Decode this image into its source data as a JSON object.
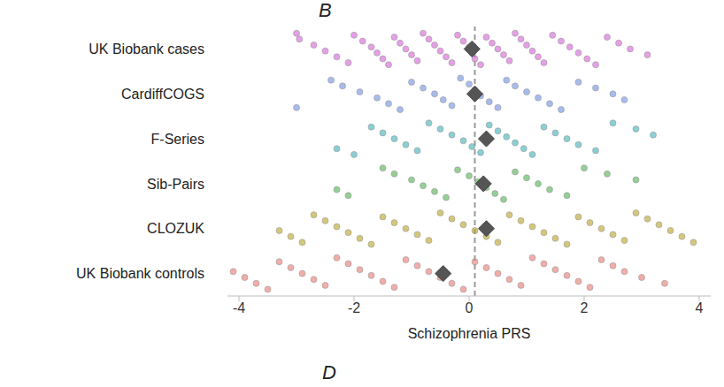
{
  "chart_data": {
    "type": "strip",
    "x_label": "Schizophrenia PRS",
    "annotations": [
      "B",
      "D"
    ],
    "xlim": [
      -4.2,
      4.2
    ],
    "xticks": [
      -4,
      -2,
      0,
      2,
      4
    ],
    "reference_line": 0.1,
    "marker": "circle",
    "grid": false,
    "series": [
      {
        "name": "UK Biobank cases",
        "color": "#d65fd6",
        "mean": 0.05,
        "values": [
          -3.0,
          -2.95,
          -2.7,
          -2.5,
          -2.3,
          -2.1,
          -2.0,
          -1.85,
          -1.7,
          -1.6,
          -1.5,
          -1.4,
          -1.3,
          -1.2,
          -1.1,
          -1.0,
          -0.9,
          -0.8,
          -0.7,
          -0.6,
          -0.5,
          -0.4,
          -0.3,
          -0.2,
          -0.1,
          0.0,
          0.05,
          0.1,
          0.2,
          0.3,
          0.4,
          0.5,
          0.6,
          0.7,
          0.8,
          0.9,
          1.0,
          1.1,
          1.2,
          1.3,
          1.45,
          1.6,
          1.75,
          1.9,
          2.05,
          2.2,
          2.4,
          2.6,
          2.8,
          3.1
        ]
      },
      {
        "name": "CardiffCOGS",
        "color": "#6c8de0",
        "mean": 0.1,
        "values": [
          -3.0,
          -2.4,
          -2.2,
          -1.9,
          -1.6,
          -1.4,
          -1.2,
          -1.0,
          -0.8,
          -0.6,
          -0.45,
          -0.3,
          -0.15,
          0.0,
          0.1,
          0.2,
          0.35,
          0.5,
          0.65,
          0.8,
          1.0,
          1.2,
          1.4,
          1.6,
          1.9,
          2.2,
          2.5,
          2.7
        ]
      },
      {
        "name": "F-Series",
        "color": "#3aafb5",
        "mean": 0.3,
        "values": [
          -2.3,
          -2.0,
          -1.7,
          -1.5,
          -1.3,
          -1.1,
          -0.9,
          -0.7,
          -0.5,
          -0.3,
          -0.1,
          0.05,
          0.2,
          0.35,
          0.5,
          0.65,
          0.8,
          0.95,
          1.1,
          1.3,
          1.5,
          1.7,
          1.9,
          2.2,
          2.5,
          2.9,
          3.2
        ]
      },
      {
        "name": "Sib-Pairs",
        "color": "#4caf50",
        "mean": 0.25,
        "values": [
          -2.3,
          -2.1,
          -1.5,
          -1.3,
          -1.0,
          -0.8,
          -0.6,
          -0.4,
          -0.2,
          0.0,
          0.15,
          0.3,
          0.45,
          0.6,
          0.8,
          1.0,
          1.2,
          1.4,
          1.7,
          2.0,
          2.4,
          2.9
        ]
      },
      {
        "name": "CLOZUK",
        "color": "#b8a21f",
        "mean": 0.3,
        "values": [
          -3.3,
          -3.1,
          -2.9,
          -2.7,
          -2.5,
          -2.3,
          -2.1,
          -1.9,
          -1.7,
          -1.5,
          -1.3,
          -1.1,
          -0.9,
          -0.7,
          -0.5,
          -0.3,
          -0.1,
          0.1,
          0.3,
          0.5,
          0.7,
          0.9,
          1.1,
          1.3,
          1.5,
          1.7,
          1.9,
          2.1,
          2.3,
          2.5,
          2.7,
          2.9,
          3.1,
          3.3,
          3.5,
          3.7,
          3.9
        ]
      },
      {
        "name": "UK Biobank controls",
        "color": "#e8776f",
        "mean": -0.45,
        "values": [
          -4.1,
          -3.9,
          -3.7,
          -3.5,
          -3.3,
          -3.1,
          -2.9,
          -2.7,
          -2.5,
          -2.3,
          -2.1,
          -1.9,
          -1.7,
          -1.5,
          -1.3,
          -1.1,
          -0.9,
          -0.7,
          -0.5,
          -0.3,
          -0.1,
          0.1,
          0.3,
          0.5,
          0.7,
          0.9,
          1.1,
          1.3,
          1.5,
          1.7,
          1.9,
          2.1,
          2.3,
          2.5,
          2.7,
          3.0,
          3.4
        ]
      }
    ]
  }
}
